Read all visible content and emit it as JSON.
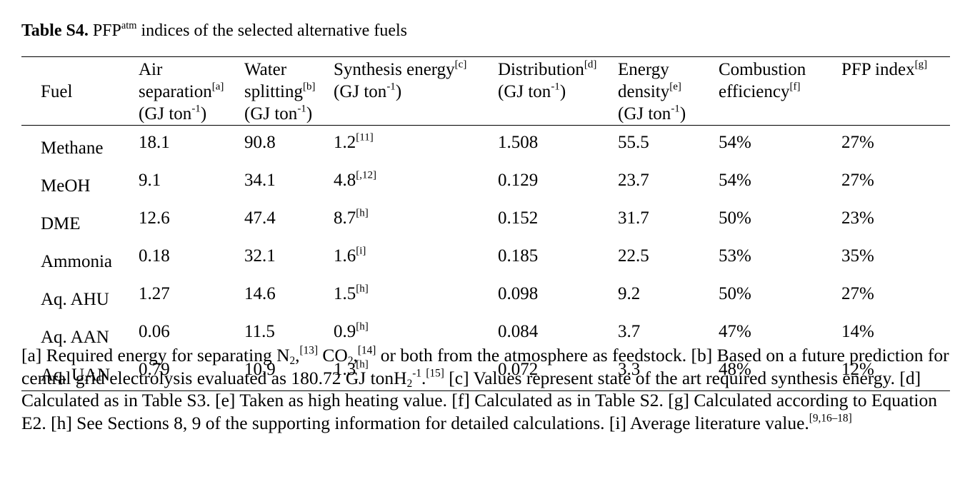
{
  "title": {
    "label": "Table S4.",
    "text": [
      "PFP",
      {
        "sup": "atm"
      },
      " indices of the selected alternative fuels"
    ]
  },
  "table": {
    "header": [
      [
        [
          "Fuel"
        ]
      ],
      [
        [
          "Air"
        ],
        [
          "separation",
          {
            "sup": "[a]"
          }
        ],
        [
          "(GJ ton",
          {
            "sup": "-1"
          },
          ")"
        ]
      ],
      [
        [
          "Water"
        ],
        [
          "splitting",
          {
            "sup": "[b]"
          }
        ],
        [
          "(GJ ton",
          {
            "sup": "-1"
          },
          ")"
        ]
      ],
      [
        [
          "Synthesis energy",
          {
            "sup": "[c]"
          }
        ],
        [
          "(GJ ton",
          {
            "sup": "-1"
          },
          ")"
        ]
      ],
      [
        [
          "Distribution",
          {
            "sup": "[d]"
          }
        ],
        [
          "(GJ ton",
          {
            "sup": "-1"
          },
          ")"
        ]
      ],
      [
        [
          "Energy"
        ],
        [
          "density",
          {
            "sup": "[e]"
          }
        ],
        [
          "(GJ ton",
          {
            "sup": "-1"
          },
          ")"
        ]
      ],
      [
        [
          "Combustion"
        ],
        [
          "efficiency",
          {
            "sup": "[f]"
          }
        ]
      ],
      [
        [
          "PFP index",
          {
            "sup": "[g]"
          }
        ]
      ]
    ],
    "rows": [
      [
        [
          "Methane"
        ],
        [
          "18.1"
        ],
        [
          "90.8"
        ],
        [
          "1.2",
          {
            "sup": "[11]"
          }
        ],
        [
          "1.508"
        ],
        [
          "55.5"
        ],
        [
          "54%"
        ],
        [
          "27%"
        ]
      ],
      [
        [
          "MeOH"
        ],
        [
          "9.1"
        ],
        [
          "34.1"
        ],
        [
          "4.8",
          {
            "sup": "[,12]"
          }
        ],
        [
          "0.129"
        ],
        [
          "23.7"
        ],
        [
          "54%"
        ],
        [
          "27%"
        ]
      ],
      [
        [
          "DME"
        ],
        [
          "12.6"
        ],
        [
          "47.4"
        ],
        [
          "8.7",
          {
            "sup": "[h]"
          }
        ],
        [
          "0.152"
        ],
        [
          "31.7"
        ],
        [
          "50%"
        ],
        [
          "23%"
        ]
      ],
      [
        [
          "Ammonia"
        ],
        [
          "0.18"
        ],
        [
          "32.1"
        ],
        [
          "1.6",
          {
            "sup": "[i]"
          }
        ],
        [
          "0.185"
        ],
        [
          "22.5"
        ],
        [
          "53%"
        ],
        [
          "35%"
        ]
      ],
      [
        [
          "Aq. AHU"
        ],
        [
          "1.27"
        ],
        [
          "14.6"
        ],
        [
          "1.5",
          {
            "sup": "[h]"
          }
        ],
        [
          "0.098"
        ],
        [
          "9.2"
        ],
        [
          "50%"
        ],
        [
          "27%"
        ]
      ],
      [
        [
          "Aq. AAN"
        ],
        [
          "0.06"
        ],
        [
          "11.5"
        ],
        [
          "0.9",
          {
            "sup": "[h]"
          }
        ],
        [
          "0.084"
        ],
        [
          "3.7"
        ],
        [
          "47%"
        ],
        [
          "14%"
        ]
      ],
      [
        [
          "Aq. UAN"
        ],
        [
          "0.79"
        ],
        [
          "10.9"
        ],
        [
          "1.3",
          {
            "sup": "[h]"
          }
        ],
        [
          "0.072"
        ],
        [
          "3.3"
        ],
        [
          "48%"
        ],
        [
          "12%"
        ]
      ]
    ]
  },
  "footnote": [
    "[a] Required energy for separating N",
    {
      "sub": "2"
    },
    ",",
    {
      "sup": "[13]"
    },
    " CO",
    {
      "sub": "2"
    },
    ",",
    {
      "sup": "[14]"
    },
    " or both from the atmosphere as feedstock. [b] Based on a future prediction for central grid electrolysis evaluated as 180.72 GJ tonH",
    {
      "sub": "2"
    },
    {
      "sup": "-1"
    },
    ".",
    {
      "sup": "[15]"
    },
    " [c] Values represent state of the art required synthesis energy. [d] Calculated as in Table S3. [e] Taken as high heating value. [f] Calculated as in Table S2. [g] Calculated according to Equation E2. [h] See Sections 8, 9 of the supporting information for detailed calculations. [i] Average literature value.",
    {
      "sup": "[9,16–18]"
    }
  ]
}
